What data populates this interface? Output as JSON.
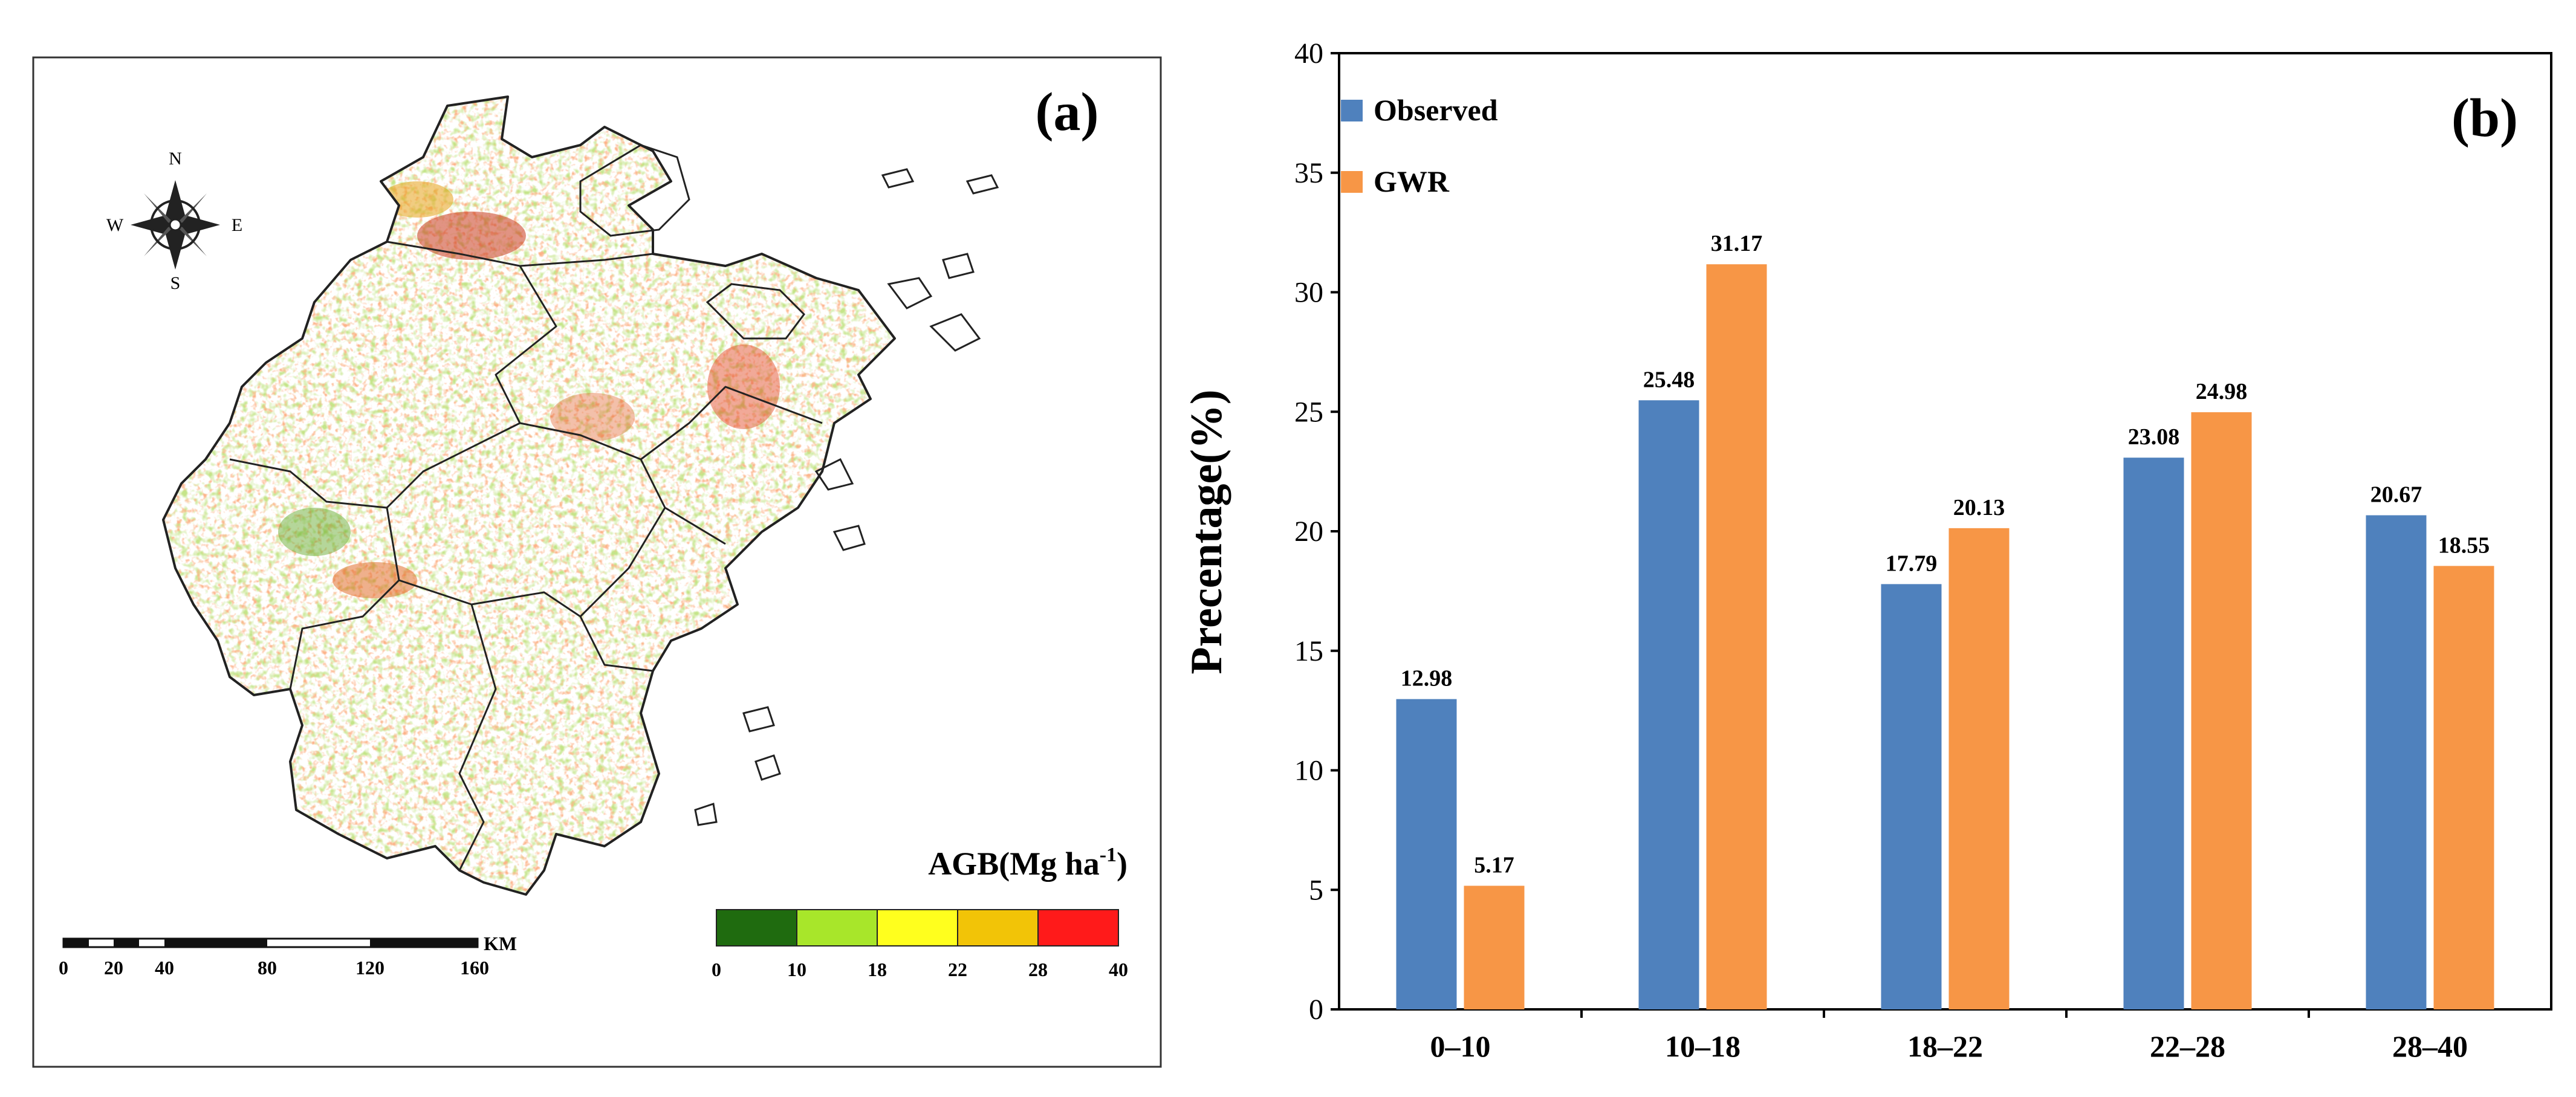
{
  "panel_a": {
    "label": "(a)",
    "compass": {
      "n": "N",
      "s": "S",
      "e": "E",
      "w": "W"
    },
    "legend": {
      "title_main": "AGB(Mg ha",
      "title_sup": "-1",
      "title_close": ")",
      "ticks": [
        "0",
        "10",
        "18",
        "22",
        "28",
        "40"
      ],
      "colors": [
        "#1f6b0f",
        "#a8e62a",
        "#ffff1e",
        "#f2c407",
        "#ff1a1a"
      ]
    },
    "scale_bar": {
      "ticks": [
        "0",
        "20",
        "40",
        "80",
        "120",
        "160"
      ],
      "unit": "KM"
    }
  },
  "chart_data": {
    "type": "bar",
    "panel_label": "(b)",
    "title": "",
    "xlabel": "",
    "ylabel": "Precentage(%)",
    "ylim": [
      0,
      40
    ],
    "yticks": [
      "0",
      "5",
      "10",
      "15",
      "20",
      "25",
      "30",
      "35",
      "40"
    ],
    "categories": [
      "0–10",
      "10–18",
      "18–22",
      "22–28",
      "28–40"
    ],
    "legend_position": "top-left",
    "series": [
      {
        "name": "Observed",
        "color": "#4f81bd",
        "values": [
          12.98,
          25.48,
          17.79,
          23.08,
          20.67
        ],
        "labels": [
          "12.98",
          "25.48",
          "17.79",
          "23.08",
          "20.67"
        ]
      },
      {
        "name": "GWR",
        "color": "#f79646",
        "values": [
          5.17,
          31.17,
          20.13,
          24.98,
          18.55
        ],
        "labels": [
          "5.17",
          "31.17",
          "20.13",
          "24.98",
          "18.55"
        ]
      }
    ]
  }
}
